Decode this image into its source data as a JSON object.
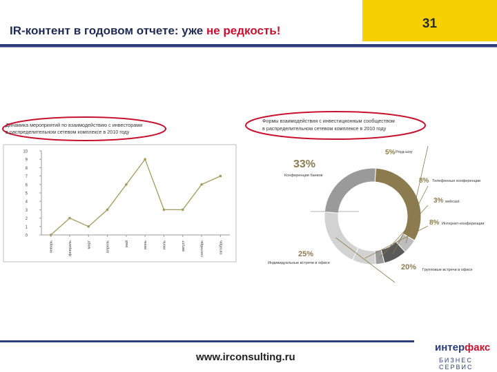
{
  "header": {
    "title_prefix": "IR-контент в годовом отчете: уже ",
    "title_accent": "не редкость!",
    "page_number": "31"
  },
  "footer": {
    "url": "www.irconsulting.ru",
    "logo_top_a": "интер",
    "logo_top_b": "факс",
    "logo_bottom": "БИЗНЕС СЕРВИС"
  },
  "colors": {
    "accent_yellow": "#f6d000",
    "brand_navy": "#2d3c7a",
    "highlight_red": "#c8102e",
    "line_olive": "#a39a5e",
    "donut_olive": "#8b7b4f",
    "donut_dark": "#5a5a5a",
    "donut_mid": "#9a9a9a",
    "donut_light": "#d2d2d2",
    "donut_lighter": "#bdbdbd"
  },
  "chart_data": [
    {
      "type": "line",
      "title": "Динамика мероприятий по взаимодействию с инвесторами в распределительном сетевом комплексе в 2010 году",
      "title_lines": [
        "Динамика мероприятий по взаимодействию с инвесторами",
        "в распределительном сетевом комплексе в 2010 году"
      ],
      "categories": [
        "январь",
        "февраль",
        "март",
        "апрель",
        "май",
        "июнь",
        "июль",
        "август",
        "сентябрь",
        "октябрь"
      ],
      "values": [
        0,
        2,
        1,
        3,
        6,
        9,
        3,
        3,
        6,
        7
      ],
      "ylim": [
        0,
        10
      ],
      "yticks": [
        0,
        1,
        2,
        3,
        4,
        5,
        6,
        7,
        8,
        9,
        10
      ],
      "grid": false
    },
    {
      "type": "pie",
      "title": "Формы взаимодействия с инвестиционным сообществом в распределительном сетевом комплексе в 2010 году",
      "title_lines": [
        "Формы взаимодействия с инвестиционным сообществом",
        "в распределительном сетевом комплексе в 2010 году"
      ],
      "slices": [
        {
          "label": "Конференции банков",
          "value": 33,
          "pct": "33%"
        },
        {
          "label": "Роуд-шоу",
          "value": 5,
          "pct": "5%"
        },
        {
          "label": "Телефонные конференции",
          "value": 8,
          "pct": "8%"
        },
        {
          "label": "webcast",
          "value": 3,
          "pct": "3%"
        },
        {
          "label": "Интернет-конференции",
          "value": 8,
          "pct": "8%"
        },
        {
          "label": "Групповые встречи в офисе",
          "value": 20,
          "pct": "20%"
        },
        {
          "label": "Индивидуальные встречи в офисе",
          "value": 25,
          "pct": "25%"
        }
      ]
    }
  ]
}
